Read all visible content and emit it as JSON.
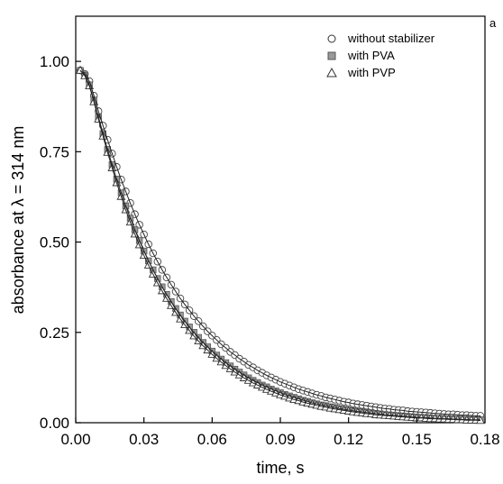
{
  "chart_data": {
    "type": "scatter",
    "panel_label": "a",
    "xlabel": "time, s",
    "ylabel": "absorbance at λ = 314 nm",
    "xlim": [
      0.0,
      0.18
    ],
    "ylim": [
      0.0,
      1.125
    ],
    "xticks": [
      0.0,
      0.03,
      0.06,
      0.09,
      0.12,
      0.15,
      0.18
    ],
    "xtick_labels": [
      "0.00",
      "0.03",
      "0.06",
      "0.09",
      "0.12",
      "0.15",
      "0.18"
    ],
    "yticks": [
      0.0,
      0.25,
      0.5,
      0.75,
      1.0
    ],
    "ytick_labels": [
      "0.00",
      "0.25",
      "0.50",
      "0.75",
      "1.00"
    ],
    "grid": false,
    "legend_position": "top-right",
    "fit_lines": true,
    "series": [
      {
        "name": "without stabilizer",
        "marker": "circle",
        "x": [
          0.002,
          0.004,
          0.006,
          0.008,
          0.01,
          0.012,
          0.014,
          0.016,
          0.018,
          0.02,
          0.022,
          0.024,
          0.026,
          0.028,
          0.03,
          0.032,
          0.034,
          0.036,
          0.038,
          0.04,
          0.042,
          0.044,
          0.046,
          0.048,
          0.05,
          0.052,
          0.054,
          0.056,
          0.058,
          0.06,
          0.062,
          0.064,
          0.066,
          0.068,
          0.07,
          0.072,
          0.074,
          0.076,
          0.078,
          0.08,
          0.082,
          0.084,
          0.086,
          0.088,
          0.09,
          0.092,
          0.094,
          0.096,
          0.098,
          0.1,
          0.102,
          0.104,
          0.106,
          0.108,
          0.11,
          0.112,
          0.114,
          0.116,
          0.118,
          0.12,
          0.122,
          0.124,
          0.126,
          0.128,
          0.13,
          0.132,
          0.134,
          0.136,
          0.138,
          0.14,
          0.142,
          0.144,
          0.146,
          0.148,
          0.15,
          0.152,
          0.154,
          0.156,
          0.158,
          0.16,
          0.162,
          0.164,
          0.166,
          0.168,
          0.17,
          0.172,
          0.174,
          0.176,
          0.178
        ],
        "y": [
          0.975,
          0.965,
          0.945,
          0.905,
          0.862,
          0.822,
          0.783,
          0.745,
          0.708,
          0.673,
          0.64,
          0.608,
          0.577,
          0.548,
          0.521,
          0.494,
          0.469,
          0.446,
          0.423,
          0.402,
          0.382,
          0.363,
          0.344,
          0.327,
          0.311,
          0.295,
          0.281,
          0.267,
          0.253,
          0.241,
          0.229,
          0.217,
          0.207,
          0.196,
          0.187,
          0.177,
          0.169,
          0.16,
          0.153,
          0.145,
          0.138,
          0.131,
          0.125,
          0.119,
          0.113,
          0.108,
          0.103,
          0.098,
          0.093,
          0.089,
          0.085,
          0.081,
          0.077,
          0.074,
          0.07,
          0.067,
          0.064,
          0.061,
          0.058,
          0.056,
          0.053,
          0.051,
          0.049,
          0.047,
          0.045,
          0.043,
          0.041,
          0.039,
          0.038,
          0.036,
          0.035,
          0.034,
          0.032,
          0.031,
          0.03,
          0.029,
          0.028,
          0.027,
          0.026,
          0.025,
          0.024,
          0.023,
          0.023,
          0.022,
          0.021,
          0.021,
          0.02,
          0.019,
          0.019
        ]
      },
      {
        "name": "with PVA",
        "marker": "square",
        "x": [
          0.002,
          0.004,
          0.006,
          0.008,
          0.01,
          0.012,
          0.014,
          0.016,
          0.018,
          0.02,
          0.022,
          0.024,
          0.026,
          0.028,
          0.03,
          0.032,
          0.034,
          0.036,
          0.038,
          0.04,
          0.042,
          0.044,
          0.046,
          0.048,
          0.05,
          0.052,
          0.054,
          0.056,
          0.058,
          0.06,
          0.062,
          0.064,
          0.066,
          0.068,
          0.07,
          0.072,
          0.074,
          0.076,
          0.078,
          0.08,
          0.082,
          0.084,
          0.086,
          0.088,
          0.09,
          0.092,
          0.094,
          0.096,
          0.098,
          0.1,
          0.102,
          0.104,
          0.106,
          0.108,
          0.11,
          0.112,
          0.114,
          0.116,
          0.118,
          0.12,
          0.122,
          0.124,
          0.126,
          0.128,
          0.13,
          0.132,
          0.134,
          0.136,
          0.138,
          0.14,
          0.142,
          0.144,
          0.146,
          0.148,
          0.15,
          0.152,
          0.154,
          0.156,
          0.158,
          0.16,
          0.162,
          0.164,
          0.166,
          0.168,
          0.17,
          0.172,
          0.174,
          0.176,
          0.178
        ],
        "y": [
          0.975,
          0.962,
          0.935,
          0.893,
          0.846,
          0.8,
          0.756,
          0.714,
          0.674,
          0.636,
          0.6,
          0.566,
          0.534,
          0.504,
          0.475,
          0.448,
          0.423,
          0.399,
          0.376,
          0.355,
          0.335,
          0.316,
          0.298,
          0.281,
          0.265,
          0.25,
          0.236,
          0.222,
          0.21,
          0.198,
          0.187,
          0.176,
          0.166,
          0.157,
          0.148,
          0.14,
          0.132,
          0.124,
          0.117,
          0.111,
          0.104,
          0.099,
          0.093,
          0.088,
          0.083,
          0.078,
          0.074,
          0.07,
          0.066,
          0.062,
          0.059,
          0.055,
          0.052,
          0.049,
          0.047,
          0.044,
          0.042,
          0.039,
          0.037,
          0.035,
          0.033,
          0.031,
          0.03,
          0.028,
          0.027,
          0.025,
          0.024,
          0.022,
          0.021,
          0.02,
          0.019,
          0.018,
          0.017,
          0.016,
          0.015,
          0.014,
          0.014,
          0.013,
          0.012,
          0.012,
          0.011,
          0.011,
          0.01,
          0.01,
          0.009,
          0.009,
          0.008,
          0.008,
          0.008
        ]
      },
      {
        "name": "with PVP",
        "marker": "triangle",
        "x": [
          0.002,
          0.004,
          0.006,
          0.008,
          0.01,
          0.012,
          0.014,
          0.016,
          0.018,
          0.02,
          0.022,
          0.024,
          0.026,
          0.028,
          0.03,
          0.032,
          0.034,
          0.036,
          0.038,
          0.04,
          0.042,
          0.044,
          0.046,
          0.048,
          0.05,
          0.052,
          0.054,
          0.056,
          0.058,
          0.06,
          0.062,
          0.064,
          0.066,
          0.068,
          0.07,
          0.072,
          0.074,
          0.076,
          0.078,
          0.08,
          0.082,
          0.084,
          0.086,
          0.088,
          0.09,
          0.092,
          0.094,
          0.096,
          0.098,
          0.1,
          0.102,
          0.104,
          0.106,
          0.108,
          0.11,
          0.112,
          0.114,
          0.116,
          0.118,
          0.12,
          0.122,
          0.124,
          0.126,
          0.128,
          0.13,
          0.132,
          0.134,
          0.136,
          0.138,
          0.14,
          0.142,
          0.144,
          0.146,
          0.148,
          0.15,
          0.152,
          0.154,
          0.156,
          0.158,
          0.16,
          0.162,
          0.164,
          0.166,
          0.168,
          0.17,
          0.172,
          0.174,
          0.176,
          0.178
        ],
        "y": [
          0.975,
          0.96,
          0.932,
          0.888,
          0.84,
          0.793,
          0.748,
          0.705,
          0.664,
          0.626,
          0.589,
          0.555,
          0.522,
          0.492,
          0.463,
          0.436,
          0.411,
          0.387,
          0.365,
          0.344,
          0.324,
          0.305,
          0.287,
          0.271,
          0.255,
          0.24,
          0.226,
          0.213,
          0.201,
          0.189,
          0.178,
          0.168,
          0.158,
          0.149,
          0.14,
          0.132,
          0.124,
          0.117,
          0.11,
          0.104,
          0.098,
          0.092,
          0.087,
          0.082,
          0.077,
          0.073,
          0.068,
          0.064,
          0.061,
          0.057,
          0.054,
          0.051,
          0.048,
          0.045,
          0.043,
          0.04,
          0.038,
          0.036,
          0.034,
          0.032,
          0.03,
          0.028,
          0.027,
          0.025,
          0.024,
          0.022,
          0.021,
          0.02,
          0.019,
          0.018,
          0.017,
          0.016,
          0.015,
          0.014,
          0.013,
          0.013,
          0.012,
          0.011,
          0.011,
          0.01,
          0.01,
          0.009,
          0.009,
          0.008,
          0.008,
          0.007,
          0.007,
          0.007,
          0.006
        ]
      }
    ]
  }
}
